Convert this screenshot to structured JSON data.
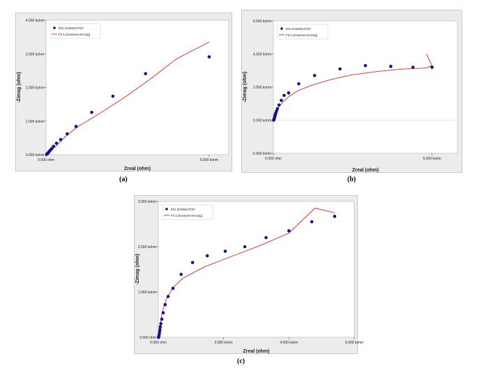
{
  "colors": {
    "fit_line": "#e8202a",
    "points": "#12128c",
    "plot_bg": "#ffffff",
    "frame_bg": "#ececec"
  },
  "chart_data": [
    {
      "panel_label": "(a)",
      "type": "scatter",
      "xlabel": "Zreal (ohm)",
      "ylabel": "-Zimag (ohm)",
      "xlim": [
        0,
        5.6
      ],
      "ylim": [
        0,
        4.0
      ],
      "xticks": [
        {
          "v": 0,
          "label": "0.000 ohm"
        },
        {
          "v": 5.0,
          "label": "5.000 kohm"
        }
      ],
      "yticks": [
        {
          "v": 0,
          "label": "0.000 kohm"
        },
        {
          "v": 1,
          "label": "1.000 kohm"
        },
        {
          "v": 2,
          "label": "2.000 kohm"
        },
        {
          "v": 3,
          "label": "3.000 kohm"
        },
        {
          "v": 4,
          "label": "4.000 kohm"
        }
      ],
      "legend": {
        "position": "top-left",
        "points_label": "EIS ZrSiMO4Ti1Y",
        "fit_label": "Fit 1 [Kramers-Kronig]"
      },
      "series": [
        {
          "name": "EIS ZrSiMO4Ti1Y",
          "kind": "points",
          "x": [
            0.02,
            0.04,
            0.06,
            0.08,
            0.1,
            0.13,
            0.17,
            0.23,
            0.32,
            0.45,
            0.65,
            0.92,
            1.4,
            2.05,
            3.05,
            5.0
          ],
          "y": [
            0.01,
            0.03,
            0.05,
            0.07,
            0.1,
            0.13,
            0.18,
            0.25,
            0.34,
            0.45,
            0.62,
            0.84,
            1.26,
            1.74,
            2.41,
            2.91
          ]
        },
        {
          "name": "Fit 1 [Kramers-Kronig]",
          "kind": "line",
          "x": [
            0,
            0.1,
            0.3,
            0.6,
            1.0,
            1.6,
            2.4,
            3.2,
            4.0,
            5.0
          ],
          "y": [
            0,
            0.06,
            0.25,
            0.55,
            0.85,
            1.2,
            1.7,
            2.25,
            2.85,
            3.35
          ]
        }
      ]
    },
    {
      "panel_label": "(b)",
      "type": "scatter",
      "xlabel": "Zreal (ohm)",
      "ylabel": "-Zimag (ohm)",
      "xlim": [
        0,
        5.8
      ],
      "ylim": [
        -2.0,
        6.0
      ],
      "xticks": [
        {
          "v": 0,
          "label": "0.000 ohm"
        },
        {
          "v": 5.0,
          "label": "5.000 kohm"
        }
      ],
      "yticks": [
        {
          "v": -2,
          "label": "-2.000 kohm"
        },
        {
          "v": 0,
          "label": "0.000 kohm"
        },
        {
          "v": 2,
          "label": "2.000 kohm"
        },
        {
          "v": 4,
          "label": "4.000 kohm"
        },
        {
          "v": 6,
          "label": "6.000 kohm"
        }
      ],
      "legend": {
        "position": "top-left",
        "points_label": "EIS ZrSiMO4Ti2Y",
        "fit_label": "Fit 1 [Kramers-Kronig]"
      },
      "series": [
        {
          "name": "EIS ZrSiMO4Ti2Y",
          "kind": "points",
          "x": [
            0.01,
            0.02,
            0.03,
            0.04,
            0.05,
            0.06,
            0.08,
            0.1,
            0.13,
            0.18,
            0.25,
            0.34,
            0.48,
            0.8,
            1.3,
            2.1,
            2.9,
            3.7,
            4.4,
            5.0
          ],
          "y": [
            0.0,
            0.05,
            0.1,
            0.18,
            0.26,
            0.34,
            0.44,
            0.56,
            0.7,
            0.92,
            1.2,
            1.5,
            1.65,
            2.2,
            2.7,
            3.1,
            3.3,
            3.25,
            3.2,
            3.2
          ]
        },
        {
          "name": "Fit 1 [Kramers-Kronig]",
          "kind": "line",
          "x": [
            0,
            0.05,
            0.15,
            0.3,
            0.5,
            0.8,
            1.2,
            1.8,
            2.5,
            3.3,
            4.1,
            4.8,
            5.0,
            4.82
          ],
          "y": [
            0,
            0.35,
            0.75,
            1.1,
            1.45,
            1.8,
            2.1,
            2.45,
            2.75,
            2.95,
            3.1,
            3.15,
            3.3,
            4.0
          ]
        }
      ]
    },
    {
      "panel_label": "(c)",
      "type": "scatter",
      "xlabel": "Zreal (ohm)",
      "ylabel": "-Zimag (ohm)",
      "xlim": [
        0,
        6.0
      ],
      "ylim": [
        0,
        3.0
      ],
      "xticks": [
        {
          "v": 0,
          "label": "0.000 ohm"
        },
        {
          "v": 2,
          "label": "2.000 kohm"
        },
        {
          "v": 4,
          "label": "4.000 kohm"
        },
        {
          "v": 6,
          "label": "6.000 kohm"
        }
      ],
      "yticks": [
        {
          "v": 0,
          "label": "0.000 ohm"
        },
        {
          "v": 1,
          "label": "1.000 kohm"
        },
        {
          "v": 2,
          "label": "2.000 kohm"
        },
        {
          "v": 3,
          "label": "3.000 kohm"
        }
      ],
      "legend": {
        "position": "top-left",
        "points_label": "EIS ZrSiMo4Ti3Y",
        "fit_label": "Fit 1 [Kramers-Kronig]"
      },
      "series": [
        {
          "name": "EIS ZrSiMo4Ti3Y",
          "kind": "points",
          "x": [
            0.01,
            0.02,
            0.03,
            0.04,
            0.05,
            0.06,
            0.08,
            0.11,
            0.15,
            0.21,
            0.3,
            0.45,
            0.7,
            1.05,
            1.5,
            2.05,
            2.65,
            3.3,
            4.0,
            4.7,
            5.4
          ],
          "y": [
            0.0,
            0.03,
            0.07,
            0.12,
            0.17,
            0.23,
            0.3,
            0.4,
            0.54,
            0.72,
            0.9,
            1.08,
            1.39,
            1.65,
            1.8,
            1.9,
            2.0,
            2.2,
            2.35,
            2.55,
            2.67
          ]
        },
        {
          "name": "Fit 1 [Kramers-Kronig]",
          "kind": "line",
          "x": [
            0,
            0.05,
            0.12,
            0.25,
            0.45,
            0.75,
            1.4,
            2.3,
            3.2,
            4.0,
            4.8,
            5.4
          ],
          "y": [
            0,
            0.25,
            0.55,
            0.85,
            1.1,
            1.3,
            1.55,
            1.8,
            2.05,
            2.3,
            2.85,
            2.75
          ]
        }
      ]
    }
  ]
}
